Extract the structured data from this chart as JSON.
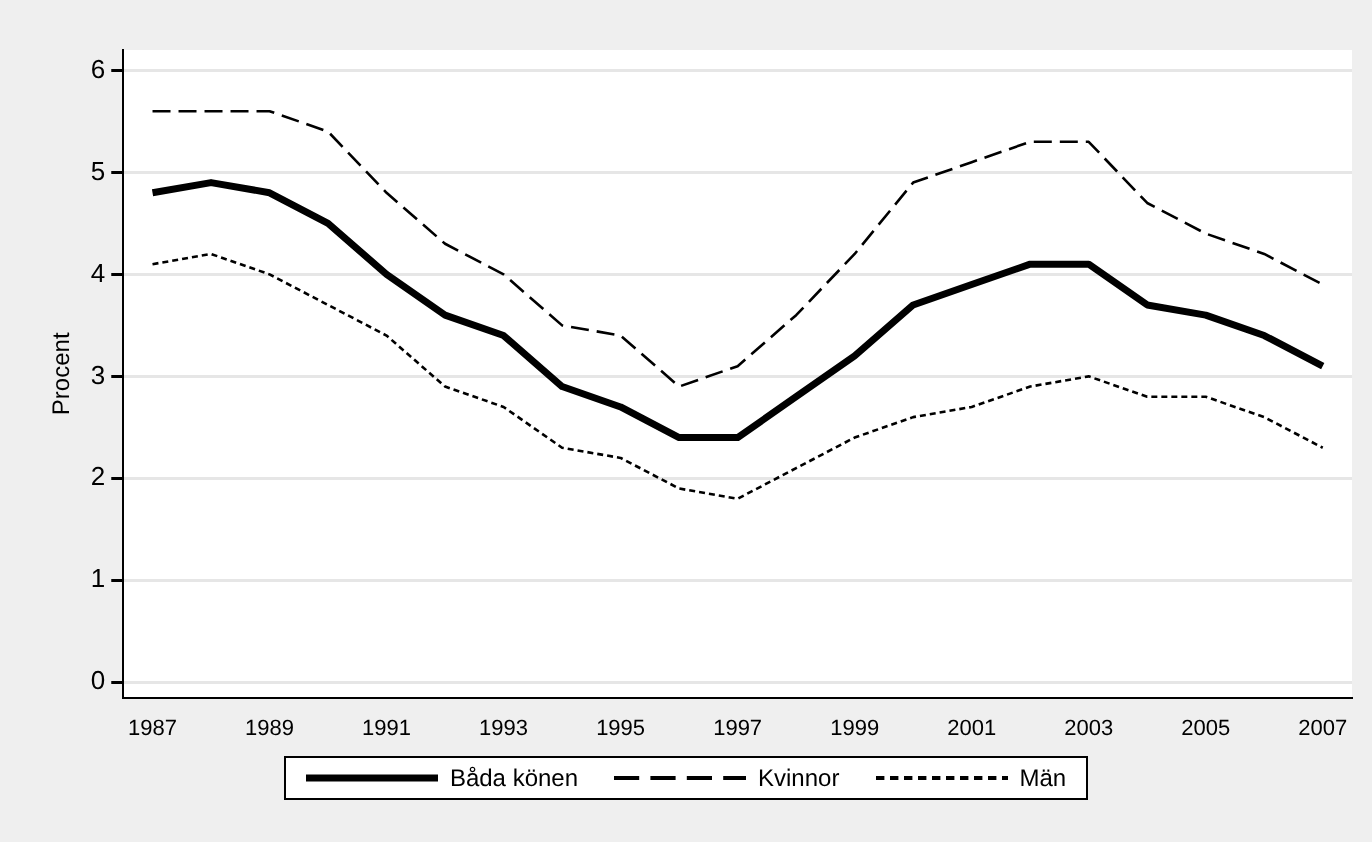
{
  "chart_data": {
    "type": "line",
    "ylabel": "Procent",
    "x": [
      1987,
      1988,
      1989,
      1990,
      1991,
      1992,
      1993,
      1994,
      1995,
      1996,
      1997,
      1998,
      1999,
      2000,
      2001,
      2002,
      2003,
      2004,
      2005,
      2006,
      2007
    ],
    "xlim": [
      1986.5,
      2007.5
    ],
    "xticks": [
      1987,
      1989,
      1991,
      1993,
      1995,
      1997,
      1999,
      2001,
      2003,
      2005,
      2007
    ],
    "ylim": [
      -0.15,
      6.2
    ],
    "yticks": [
      0,
      1,
      2,
      3,
      4,
      5,
      6
    ],
    "grid": "y",
    "legend": "bottom",
    "marker": "none",
    "series": [
      {
        "name": "Båda könen",
        "color": "#000000",
        "line_style": "solid",
        "values": [
          4.8,
          4.9,
          4.8,
          4.5,
          4.0,
          3.6,
          3.4,
          2.9,
          2.7,
          2.4,
          2.4,
          2.8,
          3.2,
          3.7,
          3.9,
          4.1,
          4.1,
          3.7,
          3.6,
          3.4,
          3.1
        ]
      },
      {
        "name": "Kvinnor",
        "color": "#000000",
        "line_style": "dashed",
        "values": [
          5.6,
          5.6,
          5.6,
          5.4,
          4.8,
          4.3,
          4.0,
          3.5,
          3.4,
          2.9,
          3.1,
          3.6,
          4.2,
          4.9,
          5.1,
          5.3,
          5.3,
          4.7,
          4.4,
          4.2,
          3.9
        ]
      },
      {
        "name": "Män",
        "color": "#000000",
        "line_style": "dotted",
        "values": [
          4.1,
          4.2,
          4.0,
          3.7,
          3.4,
          2.9,
          2.7,
          2.3,
          2.2,
          1.9,
          1.8,
          2.1,
          2.4,
          2.6,
          2.7,
          2.9,
          3.0,
          2.8,
          2.8,
          2.6,
          2.3
        ]
      }
    ]
  }
}
